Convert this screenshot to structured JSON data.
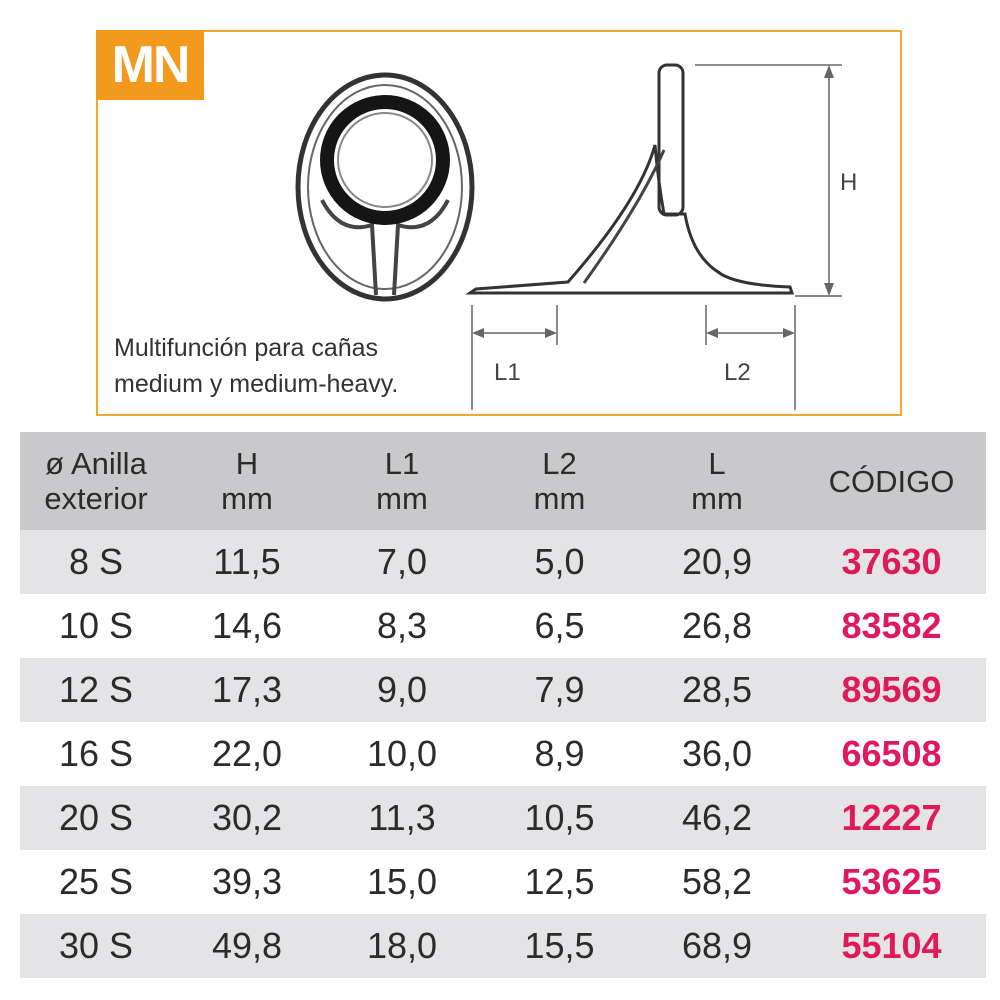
{
  "badge": "MN",
  "description": [
    "Multifunción para cañas",
    "medium y medium-heavy."
  ],
  "dimension_labels": {
    "h": "H",
    "l1": "L1",
    "l2": "L2"
  },
  "colors": {
    "accent": "#f39a1e",
    "code": "#e0195a",
    "header_bg": "#c9c9cb",
    "row_bg": "#e4e4e6"
  },
  "table": {
    "headers": [
      [
        "ø Anilla",
        "exterior"
      ],
      [
        "H",
        "mm"
      ],
      [
        "L1",
        "mm"
      ],
      [
        "L2",
        "mm"
      ],
      [
        "L",
        "mm"
      ],
      [
        "CÓDIGO",
        ""
      ]
    ],
    "rows": [
      [
        "8 S",
        "11,5",
        "7,0",
        "5,0",
        "20,9",
        "37630"
      ],
      [
        "10 S",
        "14,6",
        "8,3",
        "6,5",
        "26,8",
        "83582"
      ],
      [
        "12 S",
        "17,3",
        "9,0",
        "7,9",
        "28,5",
        "89569"
      ],
      [
        "16 S",
        "22,0",
        "10,0",
        "8,9",
        "36,0",
        "66508"
      ],
      [
        "20 S",
        "30,2",
        "11,3",
        "10,5",
        "46,2",
        "12227"
      ],
      [
        "25 S",
        "39,3",
        "15,0",
        "12,5",
        "58,2",
        "53625"
      ],
      [
        "30 S",
        "49,8",
        "18,0",
        "15,5",
        "68,9",
        "55104"
      ]
    ]
  }
}
